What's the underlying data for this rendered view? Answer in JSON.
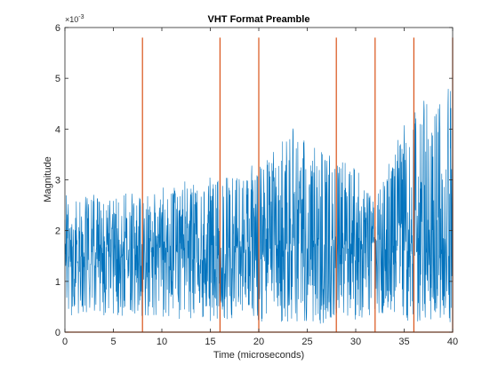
{
  "chart_data": {
    "type": "line",
    "title": "VHT Format Preamble",
    "xlabel": "Time (microseconds)",
    "ylabel": "Magnitude",
    "xlim": [
      0,
      40
    ],
    "ylim": [
      0,
      0.006
    ],
    "xticks": [
      0,
      5,
      10,
      15,
      20,
      25,
      30,
      35,
      40
    ],
    "xtick_labels": [
      "0",
      "5",
      "10",
      "15",
      "20",
      "25",
      "30",
      "35",
      "40"
    ],
    "yticks": [
      0,
      0.001,
      0.002,
      0.003,
      0.004,
      0.005,
      0.006
    ],
    "ytick_labels": [
      "0",
      "1",
      "2",
      "3",
      "4",
      "5",
      "6"
    ],
    "y_exponent_label": "×10",
    "y_exponent_power": "-3",
    "grid": false,
    "series": [
      {
        "color": "#0072BD",
        "style": "dense-noise",
        "envelope": [
          {
            "x": 0,
            "low": 0.0003,
            "mean": 0.0015,
            "high": 0.0027
          },
          {
            "x": 8,
            "low": 0.0003,
            "mean": 0.0015,
            "high": 0.0028
          },
          {
            "x": 16,
            "low": 0.0002,
            "mean": 0.0015,
            "high": 0.0032
          },
          {
            "x": 20,
            "low": 0.0002,
            "mean": 0.0015,
            "high": 0.0033
          },
          {
            "x": 24,
            "low": 0.0002,
            "mean": 0.0016,
            "high": 0.0043
          },
          {
            "x": 28,
            "low": 0.0001,
            "mean": 0.0016,
            "high": 0.0036
          },
          {
            "x": 32,
            "low": 0.0003,
            "mean": 0.0016,
            "high": 0.0028
          },
          {
            "x": 36,
            "low": 0.0002,
            "mean": 0.0015,
            "high": 0.0045
          },
          {
            "x": 40,
            "low": 0.0001,
            "mean": 0.0013,
            "high": 0.0049
          }
        ]
      },
      {
        "color": "#D95319",
        "style": "field-boundaries",
        "x": [
          0,
          8,
          16,
          20,
          28,
          32,
          36,
          40
        ],
        "y": 0.0058
      }
    ]
  }
}
